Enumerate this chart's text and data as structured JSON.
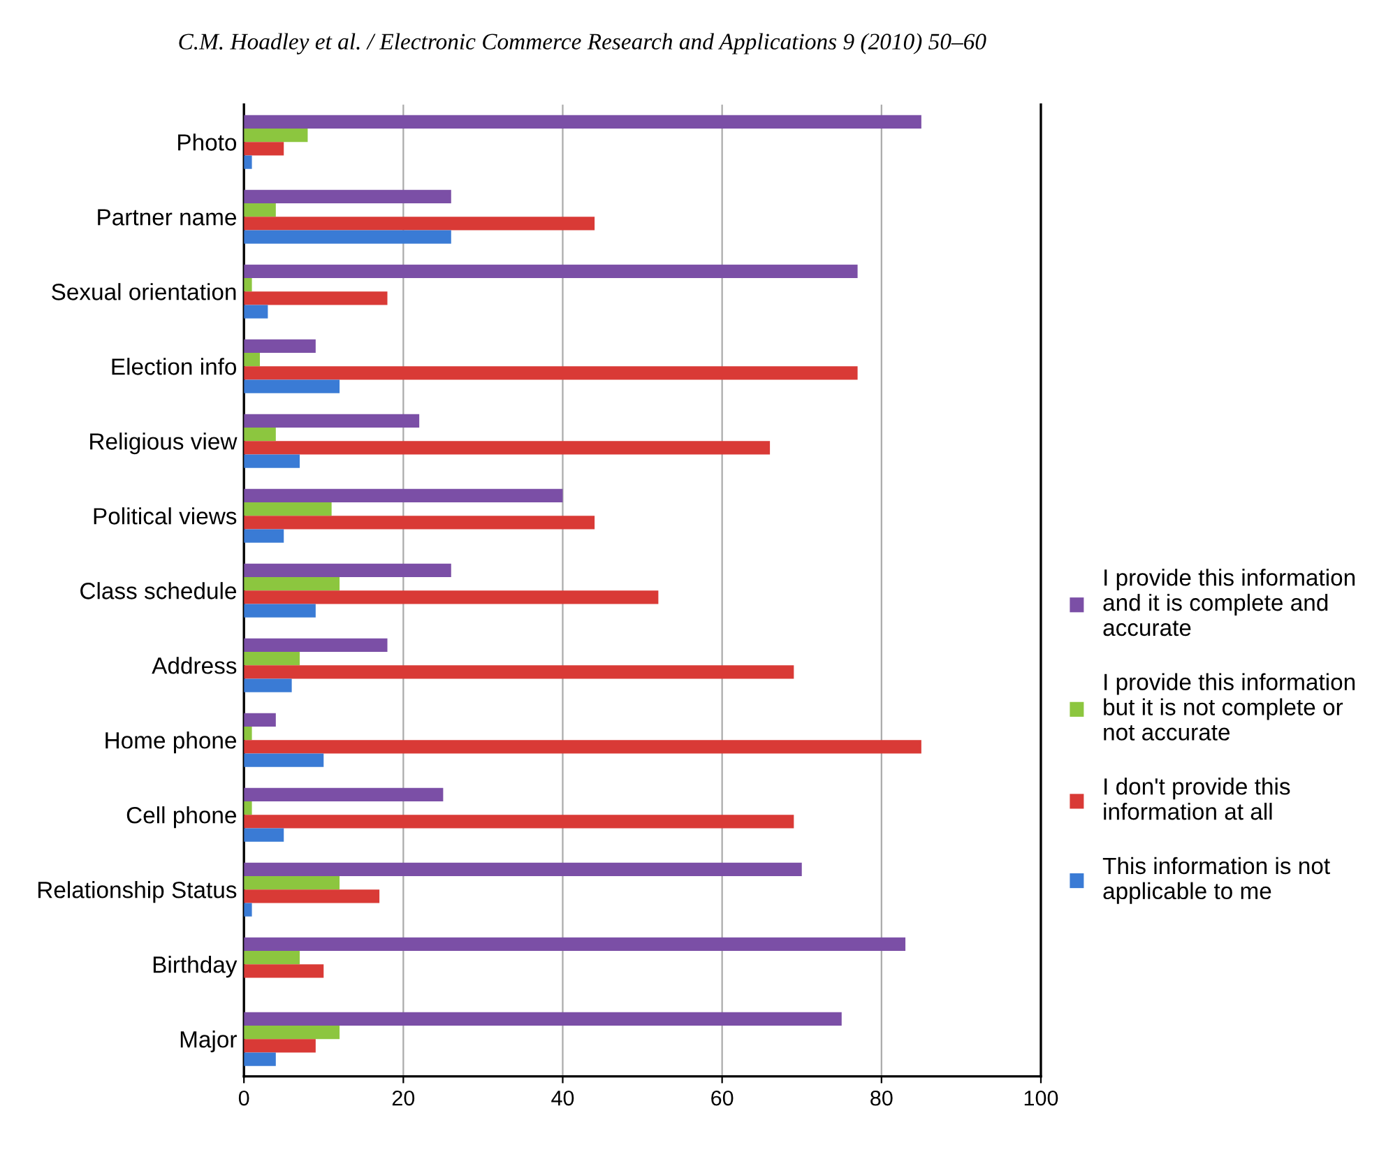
{
  "chart_data": {
    "type": "bar",
    "orientation": "horizontal",
    "annotations": [
      "C.M. Hoadley et al. / Electronic Commerce Research and Applications 9 (2010) 50–60"
    ],
    "categories": [
      "Photo",
      "Partner name",
      "Sexual orientation",
      "Election info",
      "Religious view",
      "Political views",
      "Class schedule",
      "Address",
      "Home phone",
      "Cell phone",
      "Relationship Status",
      "Birthday",
      "Major"
    ],
    "series": [
      {
        "name": "I provide this information\nand it is complete and\naccurate",
        "color": "#7b4fa6",
        "values": [
          85,
          26,
          77,
          9,
          22,
          40,
          26,
          18,
          4,
          25,
          70,
          83,
          75
        ]
      },
      {
        "name": "I provide this information\nbut it is not complete or\nnot accurate",
        "color": "#8cc63f",
        "values": [
          8,
          4,
          1,
          2,
          4,
          11,
          12,
          7,
          1,
          1,
          12,
          7,
          12
        ]
      },
      {
        "name": "I don't provide this\ninformation at all",
        "color": "#d93a36",
        "values": [
          5,
          44,
          18,
          77,
          66,
          44,
          52,
          69,
          85,
          69,
          17,
          10,
          9
        ]
      },
      {
        "name": "This information is not\napplicable to me",
        "color": "#3a7bd5",
        "values": [
          1,
          26,
          3,
          12,
          7,
          5,
          9,
          6,
          10,
          5,
          1,
          0,
          4
        ]
      }
    ],
    "xlim": [
      0,
      100
    ],
    "xticks": [
      0,
      20,
      40,
      60,
      80,
      100
    ],
    "grid": "x",
    "legend": "right"
  }
}
